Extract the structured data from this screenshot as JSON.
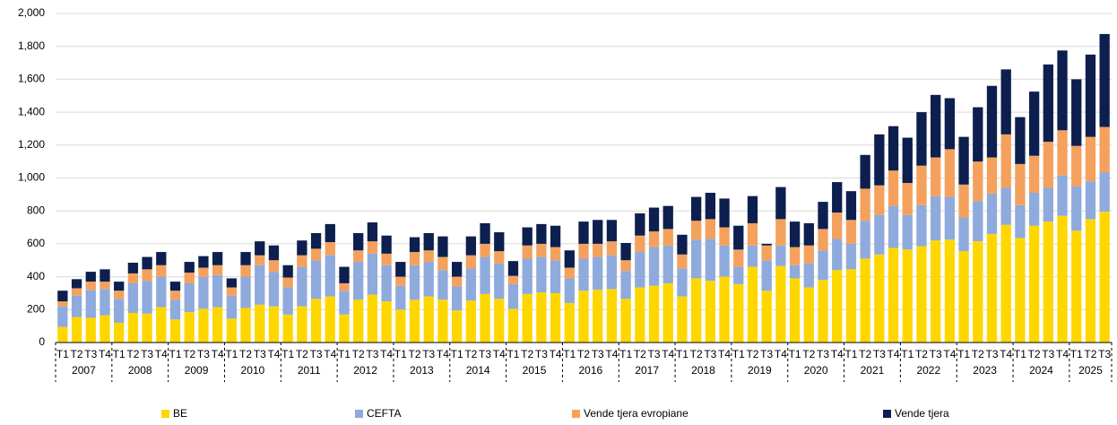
{
  "chart_data": {
    "type": "stacked_bar",
    "groups": [
      {
        "label": "2007",
        "categories": [
          "T1",
          "T2",
          "T3",
          "T4"
        ]
      },
      {
        "label": "2008",
        "categories": [
          "T1",
          "T2",
          "T3",
          "T4"
        ]
      },
      {
        "label": "2009",
        "categories": [
          "T1",
          "T2",
          "T3",
          "T4"
        ]
      },
      {
        "label": "2010",
        "categories": [
          "T1",
          "T2",
          "T3",
          "T4"
        ]
      },
      {
        "label": "2011",
        "categories": [
          "T1",
          "T2",
          "T3",
          "T4"
        ]
      },
      {
        "label": "2012",
        "categories": [
          "T1",
          "T2",
          "T3",
          "T4"
        ]
      },
      {
        "label": "2013",
        "categories": [
          "T1",
          "T2",
          "T3",
          "T4"
        ]
      },
      {
        "label": "2014",
        "categories": [
          "T1",
          "T2",
          "T3",
          "T4"
        ]
      },
      {
        "label": "2015",
        "categories": [
          "T1",
          "T2",
          "T3",
          "T4"
        ]
      },
      {
        "label": "2016",
        "categories": [
          "T1",
          "T2",
          "T3",
          "T4"
        ]
      },
      {
        "label": "2017",
        "categories": [
          "T1",
          "T2",
          "T3",
          "T4"
        ]
      },
      {
        "label": "2018",
        "categories": [
          "T1",
          "T2",
          "T3",
          "T4"
        ]
      },
      {
        "label": "2019",
        "categories": [
          "T1",
          "T2",
          "T3",
          "T4"
        ]
      },
      {
        "label": "2020",
        "categories": [
          "T1",
          "T2",
          "T3",
          "T4"
        ]
      },
      {
        "label": "2021",
        "categories": [
          "T1",
          "T2",
          "T3",
          "T4"
        ]
      },
      {
        "label": "2022",
        "categories": [
          "T1",
          "T2",
          "T3",
          "T4"
        ]
      },
      {
        "label": "2023",
        "categories": [
          "T1",
          "T2",
          "T3",
          "T4"
        ]
      },
      {
        "label": "2024",
        "categories": [
          "T1",
          "T2",
          "T3",
          "T4"
        ]
      },
      {
        "label": "2025",
        "categories": [
          "T1",
          "T2",
          "T3"
        ]
      }
    ],
    "series": [
      {
        "name": "BE",
        "color": "#ffd700",
        "values": [
          95,
          155,
          150,
          165,
          120,
          180,
          175,
          215,
          140,
          185,
          205,
          215,
          145,
          210,
          230,
          220,
          170,
          220,
          265,
          280,
          170,
          260,
          290,
          250,
          200,
          260,
          280,
          260,
          195,
          255,
          295,
          265,
          205,
          295,
          305,
          300,
          240,
          315,
          320,
          325,
          265,
          335,
          345,
          360,
          280,
          390,
          375,
          400,
          355,
          460,
          315,
          465,
          390,
          335,
          380,
          440,
          445,
          510,
          535,
          575,
          565,
          585,
          620,
          625,
          555,
          615,
          660,
          715,
          635,
          710,
          735,
          770,
          680,
          750,
          795
        ]
      },
      {
        "name": "CEFTA",
        "color": "#8faadc",
        "values": [
          125,
          130,
          170,
          160,
          145,
          180,
          200,
          185,
          120,
          175,
          195,
          195,
          140,
          190,
          240,
          210,
          165,
          240,
          235,
          250,
          145,
          230,
          250,
          220,
          145,
          210,
          210,
          180,
          145,
          195,
          225,
          215,
          150,
          215,
          215,
          200,
          150,
          195,
          200,
          205,
          170,
          215,
          235,
          230,
          170,
          235,
          255,
          190,
          105,
          130,
          185,
          125,
          80,
          145,
          180,
          190,
          155,
          230,
          240,
          255,
          210,
          250,
          270,
          260,
          205,
          245,
          245,
          225,
          200,
          200,
          205,
          245,
          270,
          230,
          240
        ]
      },
      {
        "name": "Vende tjera evropiane",
        "color": "#f4a15d",
        "values": [
          30,
          45,
          50,
          45,
          50,
          60,
          70,
          70,
          55,
          65,
          55,
          60,
          50,
          70,
          60,
          70,
          60,
          70,
          70,
          80,
          45,
          70,
          75,
          70,
          55,
          80,
          70,
          80,
          60,
          80,
          80,
          75,
          50,
          80,
          80,
          80,
          65,
          90,
          80,
          85,
          65,
          100,
          95,
          100,
          85,
          115,
          120,
          110,
          105,
          135,
          90,
          160,
          110,
          110,
          130,
          160,
          145,
          195,
          180,
          215,
          195,
          240,
          235,
          290,
          200,
          240,
          220,
          325,
          250,
          225,
          280,
          275,
          245,
          270,
          275
        ]
      },
      {
        "name": "Vende tjera",
        "color": "#0d1f4e",
        "values": [
          65,
          55,
          60,
          75,
          55,
          65,
          75,
          80,
          55,
          65,
          70,
          80,
          55,
          80,
          85,
          90,
          75,
          90,
          95,
          110,
          100,
          105,
          115,
          110,
          90,
          90,
          105,
          125,
          90,
          115,
          125,
          115,
          90,
          110,
          120,
          130,
          105,
          135,
          145,
          130,
          105,
          135,
          145,
          140,
          120,
          145,
          160,
          175,
          145,
          165,
          10,
          195,
          155,
          135,
          165,
          185,
          175,
          205,
          310,
          270,
          275,
          325,
          380,
          310,
          290,
          330,
          435,
          395,
          285,
          390,
          470,
          485,
          405,
          500,
          565
        ]
      }
    ],
    "ylim": [
      0,
      2000
    ],
    "yticks": [
      0,
      200,
      400,
      600,
      800,
      {
        "value": 1000,
        "label": "1,000"
      },
      {
        "value": 1200,
        "label": "1,200"
      },
      {
        "value": 1400,
        "label": "1,400"
      },
      {
        "value": 1600,
        "label": "1,600"
      },
      {
        "value": 1800,
        "label": "1,800"
      },
      {
        "value": 2000,
        "label": "2,000"
      }
    ],
    "grid": true,
    "legend": "bottom"
  }
}
